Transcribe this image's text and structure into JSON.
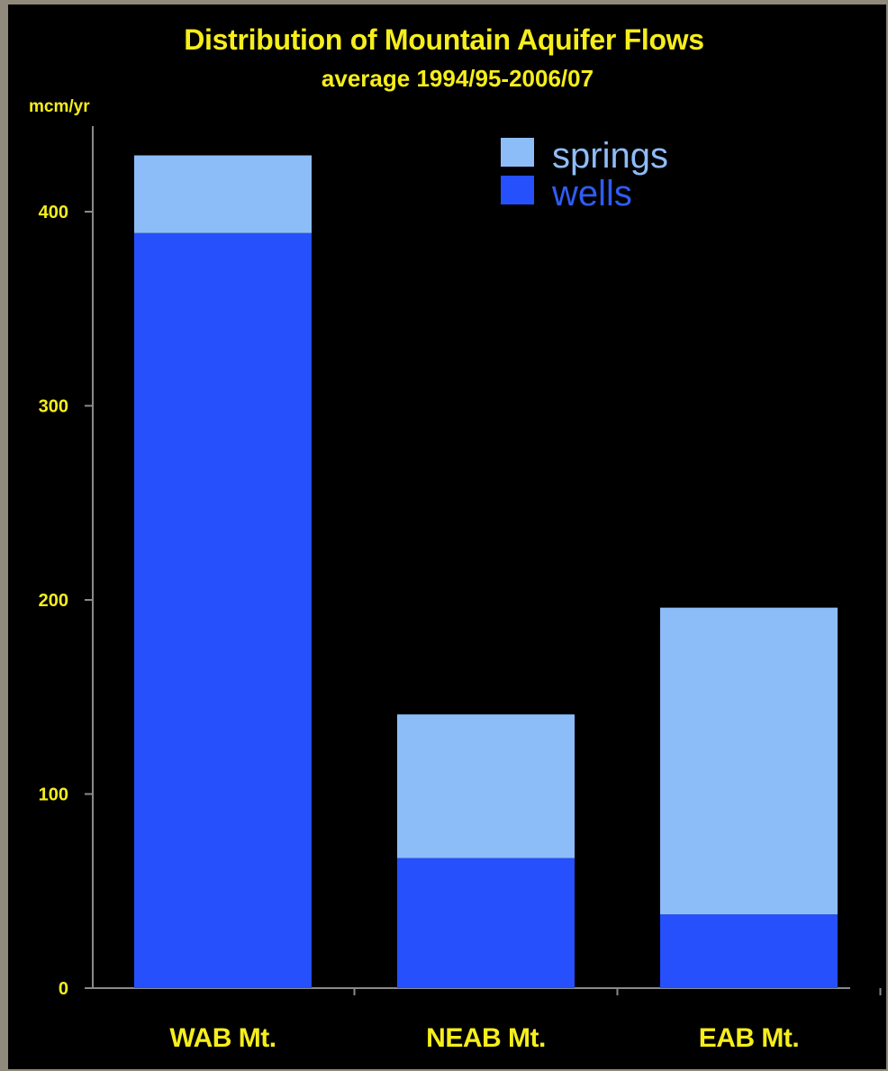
{
  "chart_data": {
    "type": "bar",
    "stacked": true,
    "title": "Distribution of Mountain Aquifer Flows",
    "subtitle": "average 1994/95-2006/07",
    "ylabel": "mcm/yr",
    "xlabel": "",
    "categories": [
      "WAB Mt.",
      "NEAB Mt.",
      "EAB Mt."
    ],
    "series": [
      {
        "name": "wells",
        "values": [
          389,
          67,
          38
        ]
      },
      {
        "name": "springs",
        "values": [
          40,
          74,
          158
        ]
      }
    ],
    "yticks": [
      0,
      100,
      200,
      300,
      400
    ],
    "ylim": [
      0,
      443
    ],
    "grid": false,
    "legend_position": "top-right"
  },
  "colors": {
    "background": "#000000",
    "text": "#f5ee1b",
    "wells": "#2550fb",
    "springs": "#8dbdf9",
    "legend_springs_text": "#8fbcf6",
    "legend_wells_text": "#2f5cf5",
    "axis": "#8a8a8a"
  }
}
